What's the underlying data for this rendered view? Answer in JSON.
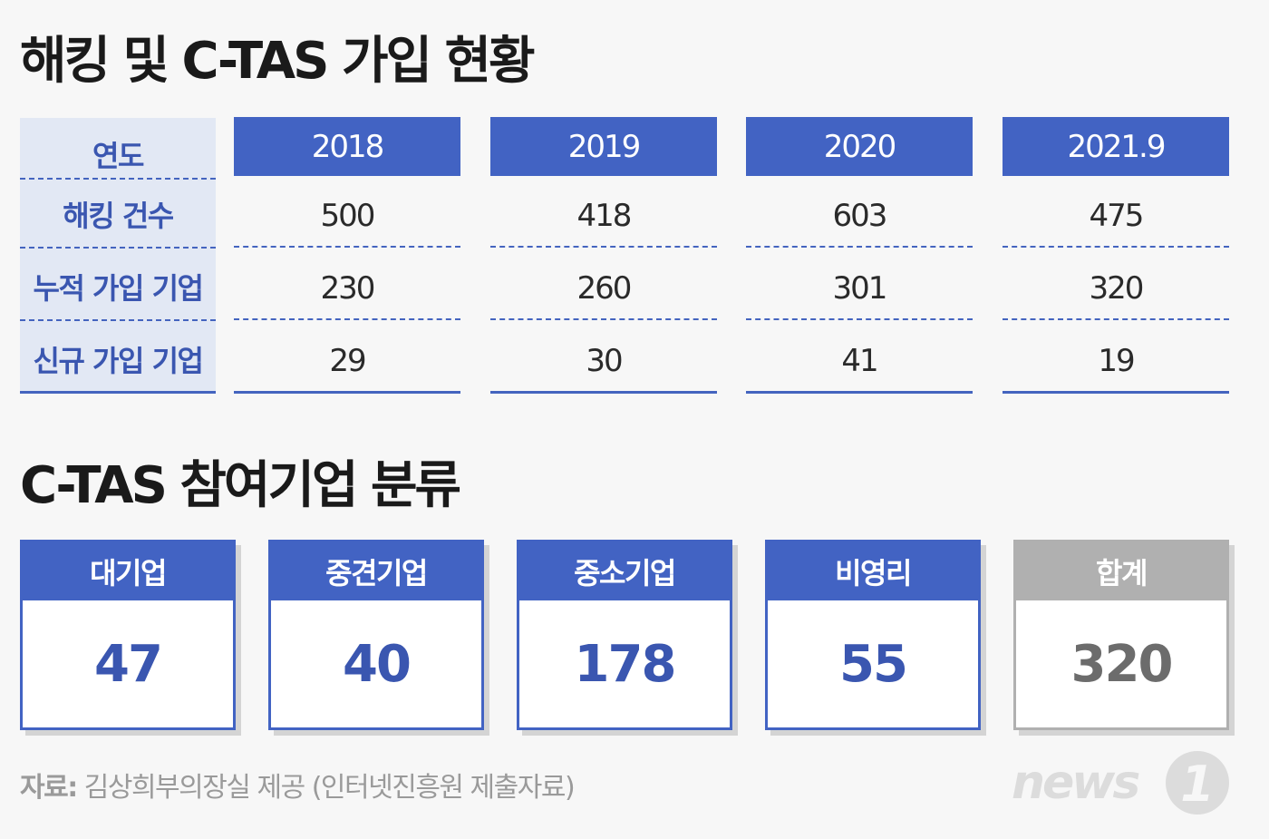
{
  "title1": "해킹 및 C-TAS 가입 현황",
  "title2": "C-TAS 참여기업 분류",
  "table": {
    "header_label": "연도",
    "years": [
      "2018",
      "2019",
      "2020",
      "2021.9"
    ],
    "rows": [
      {
        "label": "해킹 건수",
        "values": [
          "500",
          "418",
          "603",
          "475"
        ]
      },
      {
        "label": "누적 가입 기업",
        "values": [
          "230",
          "260",
          "301",
          "320"
        ]
      },
      {
        "label": "신규 가입 기업",
        "values": [
          "29",
          "30",
          "41",
          "19"
        ]
      }
    ]
  },
  "categories": [
    {
      "label": "대기업",
      "value": "47"
    },
    {
      "label": "중견기업",
      "value": "40"
    },
    {
      "label": "중소기업",
      "value": "178"
    },
    {
      "label": "비영리",
      "value": "55"
    },
    {
      "label": "합계",
      "value": "320"
    }
  ],
  "source": {
    "label": "자료:",
    "text": "김상희부의장실 제공 (인터넷진흥원 제출자료)"
  },
  "logo": {
    "text": "news",
    "mark": "1"
  },
  "colors": {
    "accent": "#4263c3",
    "label_bg": "#e2e8f4",
    "total": "#b0b0b0",
    "background": "#f7f7f7"
  }
}
